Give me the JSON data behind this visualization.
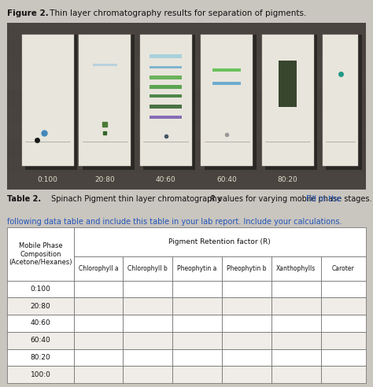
{
  "figure_label": "Figure 2.",
  "figure_caption": " Thin layer chromatography results for separation of pigments.",
  "table_label": "Table 2.",
  "table_caption_p1": " Spinach Pigment thin layer chromatography ",
  "table_caption_r": "R",
  "table_caption_p2": " values for varying mobile phase stages. ",
  "table_caption_blue1": "Fill in the",
  "table_caption_blue2": "following data table and include this table in your lab report. Include your calculations.",
  "col_header_main": "Pigment Retention factor (R)",
  "col_header_left": "Mobile Phase\nComposition\n(Acetone/Hexanes)",
  "col_headers": [
    "Chlorophyll a",
    "Chlorophyll b",
    "Pheophytin a",
    "Pheophytin b",
    "Xanthophylls",
    "Caroter"
  ],
  "row_labels": [
    "0:100",
    "20:80",
    "40:60",
    "60:40",
    "80:20",
    "100:0"
  ],
  "photo_ratios": [
    "0:100",
    "20:80",
    "40:60",
    "60:40",
    "80:20"
  ],
  "page_bg": "#c9c5bf",
  "photo_bg": "#4a4440",
  "strip_bg": "#edeae2",
  "text_color": "#111111",
  "text_blue": "#2255bb",
  "table_white": "#ffffff",
  "table_light": "#f0ede8",
  "border_color": "#666666"
}
